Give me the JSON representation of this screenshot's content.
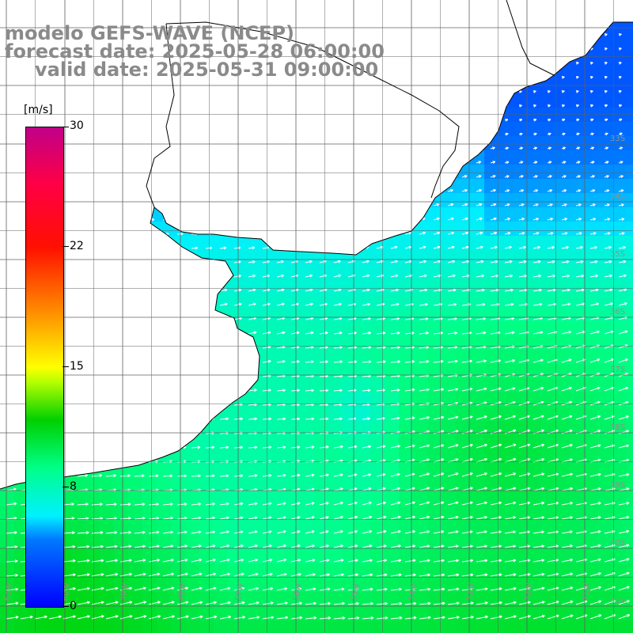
{
  "header": {
    "model": "modelo GEFS-WAVE (NCEP)",
    "forecast": "forecast date: 2025-05-28 06:00:00",
    "valid": "valid date: 2025-05-31 09:00:00"
  },
  "colorbar": {
    "unit": "[m/s]",
    "labels": [
      "30",
      "22",
      "15",
      "8",
      "0"
    ],
    "min": 0,
    "max": 30
  },
  "map": {
    "ocean_color_low": "#0070ff",
    "ocean_color_mid": "#00ffff",
    "ocean_color_high": "#00ff70",
    "land_color": "#ffffff",
    "gridline_color": "#606060",
    "label_color": "#909090",
    "lon_labels": [
      "61W",
      "60W",
      "59W",
      "58W",
      "57W",
      "56W",
      "55W",
      "54W",
      "53W",
      "52W",
      "51W"
    ],
    "lat_labels": [
      "33S",
      "34S",
      "35S",
      "36S",
      "37S",
      "38S",
      "39S",
      "40S",
      "41S"
    ],
    "vector_field": "wind direction arrows (white)"
  }
}
